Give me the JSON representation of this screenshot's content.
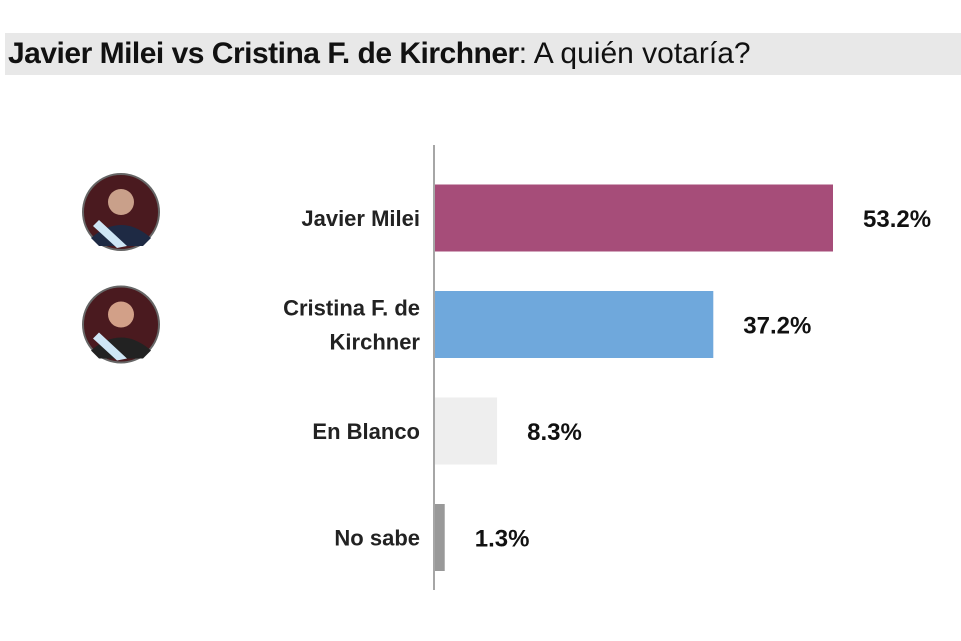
{
  "title": {
    "bold": "Javier Milei vs Cristina F. de Kirchner",
    "rest": ": A quién votaría?"
  },
  "chart_data": {
    "type": "bar",
    "orientation": "horizontal",
    "title": "Javier Milei vs Cristina F. de Kirchner: A quién votaría?",
    "categories": [
      [
        "Javier Milei"
      ],
      [
        "Cristina F. de",
        "Kirchner"
      ],
      [
        "En Blanco"
      ],
      [
        "No sabe"
      ]
    ],
    "values": [
      53.2,
      37.2,
      8.3,
      1.3
    ],
    "labels": [
      "53.2%",
      "37.2%",
      "8.3%",
      "1.3%"
    ],
    "colors": [
      "#a64d79",
      "#6fa8dc",
      "#eeeeee",
      "#999999"
    ],
    "avatars": [
      "milei-photo",
      "kirchner-photo",
      null,
      null
    ],
    "xlim": [
      0,
      53.2
    ],
    "grid": false
  }
}
